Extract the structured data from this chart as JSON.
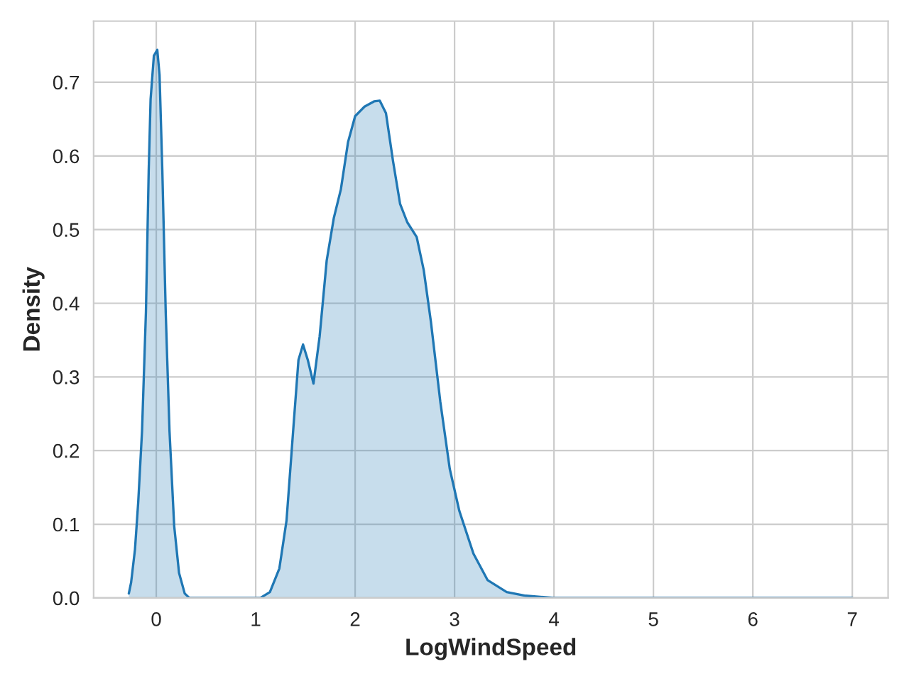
{
  "chart_data": {
    "type": "area",
    "xlabel": "LogWindSpeed",
    "ylabel": "Density",
    "series": [
      {
        "color": "#1f77b4",
        "x": [
          -0.276,
          -0.253,
          -0.214,
          -0.181,
          -0.143,
          -0.104,
          -0.076,
          -0.057,
          -0.024,
          0.01,
          0.033,
          0.061,
          0.095,
          0.133,
          0.18,
          0.229,
          0.286,
          0.333,
          1.047,
          1.143,
          1.238,
          1.31,
          1.38,
          1.43,
          1.476,
          1.524,
          1.581,
          1.643,
          1.714,
          1.786,
          1.857,
          1.929,
          2.0,
          2.095,
          2.19,
          2.248,
          2.31,
          2.381,
          2.452,
          2.524,
          2.619,
          2.69,
          2.762,
          2.857,
          2.952,
          3.048,
          3.19,
          3.333,
          3.524,
          3.714,
          4.0,
          7.0
        ],
        "values": [
          0.006,
          0.021,
          0.066,
          0.131,
          0.227,
          0.388,
          0.58,
          0.677,
          0.736,
          0.744,
          0.71,
          0.58,
          0.388,
          0.227,
          0.098,
          0.034,
          0.006,
          0,
          0,
          0.008,
          0.04,
          0.105,
          0.233,
          0.323,
          0.344,
          0.323,
          0.291,
          0.355,
          0.458,
          0.516,
          0.555,
          0.619,
          0.654,
          0.667,
          0.674,
          0.675,
          0.658,
          0.593,
          0.535,
          0.51,
          0.49,
          0.445,
          0.375,
          0.266,
          0.175,
          0.118,
          0.06,
          0.024,
          0.008,
          0.003,
          0,
          0
        ]
      }
    ],
    "xlim": [
      -0.63,
      7.36
    ],
    "ylim": [
      0,
      0.783
    ],
    "xticks": [
      0,
      1,
      2,
      3,
      4,
      5,
      6,
      7
    ],
    "yticks": [
      {
        "value": 0,
        "label": "0.0"
      },
      0.1,
      0.2,
      0.3,
      0.4,
      0.5,
      0.6,
      0.7
    ],
    "grid": true
  }
}
